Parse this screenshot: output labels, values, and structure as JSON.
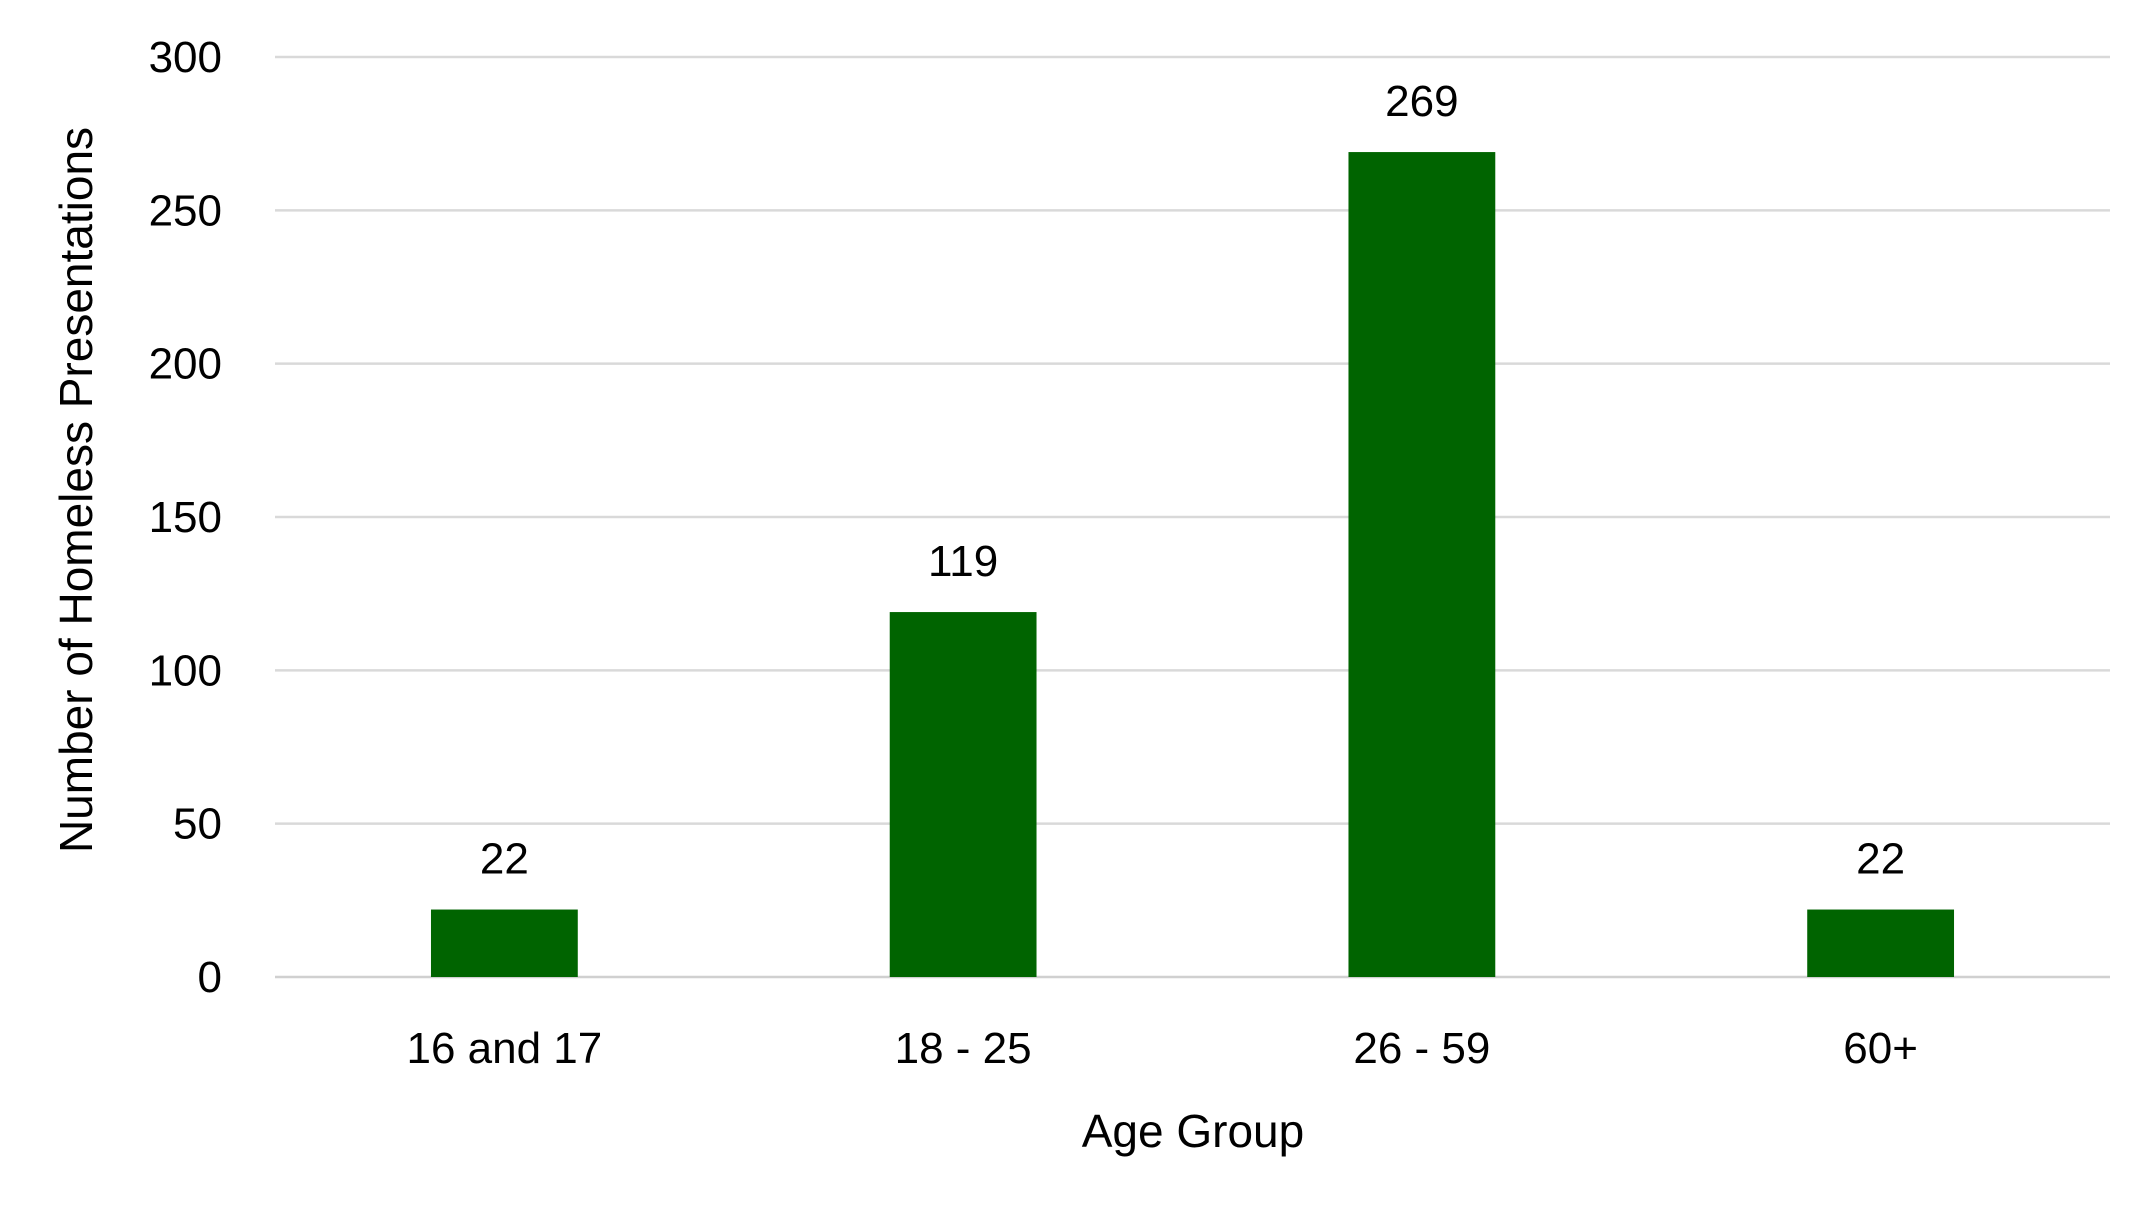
{
  "chart_data": {
    "type": "bar",
    "title": "",
    "xlabel": "Age Group",
    "ylabel": "Number of Homeless Presentations",
    "categories": [
      "16 and 17",
      "18 - 25",
      "26 - 59",
      "60+"
    ],
    "values": [
      22,
      119,
      269,
      22
    ],
    "data_labels": [
      "22",
      "119",
      "269",
      "22"
    ],
    "ylim": [
      0,
      300
    ],
    "yticks": [
      "0",
      "50",
      "100",
      "150",
      "200",
      "250",
      "300"
    ],
    "grid": true,
    "legend": "none",
    "bar_color": "#006400"
  }
}
